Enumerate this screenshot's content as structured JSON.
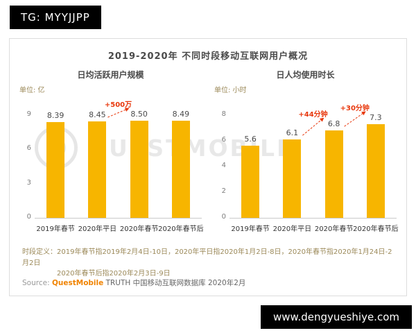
{
  "overlays": {
    "top_left_badge": "TG: MYYJJPP",
    "bottom_right_badge": "www.dengyueshiye.com"
  },
  "report": {
    "title": "2019-2020年 不同时段移动互联网用户概况",
    "watermark": "QUESTMOBILE"
  },
  "chart_data": [
    {
      "type": "bar",
      "title": "日均活跃用户规模",
      "unit": "单位: 亿",
      "categories": [
        "2019年春节",
        "2020年平日",
        "2020年春节",
        "2020年春节后"
      ],
      "values": [
        8.39,
        8.45,
        8.5,
        8.49
      ],
      "value_labels": [
        "8.39",
        "8.45",
        "8.50",
        "8.49"
      ],
      "ylim": [
        0,
        9
      ],
      "yticks": [
        9,
        6,
        3,
        0
      ],
      "grid": false,
      "legend": "none",
      "bar_color": "#F7B500",
      "annotations": [
        {
          "label": "+500万",
          "from": 1,
          "to": 2
        }
      ]
    },
    {
      "type": "bar",
      "title": "日人均使用时长",
      "unit": "单位: 小时",
      "categories": [
        "2019年春节",
        "2020年平日",
        "2020年春节",
        "2020年春节后"
      ],
      "values": [
        5.6,
        6.1,
        6.8,
        7.3
      ],
      "value_labels": [
        "5.6",
        "6.1",
        "6.8",
        "7.3"
      ],
      "ylim": [
        0,
        8
      ],
      "yticks": [
        8,
        6,
        4,
        2,
        0
      ],
      "grid": false,
      "legend": "none",
      "bar_color": "#F7B500",
      "annotations": [
        {
          "label": "+44分钟",
          "from": 1,
          "to": 2
        },
        {
          "label": "+30分钟",
          "from": 2,
          "to": 3
        }
      ]
    }
  ],
  "footnotes": {
    "line1": "时段定义：2019年春节指2019年2月4日-10日，2020年平日指2020年1月2日-8日，2020年春节指2020年1月24日-2月2日",
    "line2": "2020年春节后指2020年2月3日-9日",
    "source_label": "Source:",
    "source_brand": "QuestMobile",
    "source_text": "TRUTH 中国移动互联网数据库 2020年2月"
  },
  "colors": {
    "bar": "#F7B500",
    "annotation_red": "#E8380D",
    "brand_orange": "#F08300",
    "badge_bg": "#000000"
  }
}
